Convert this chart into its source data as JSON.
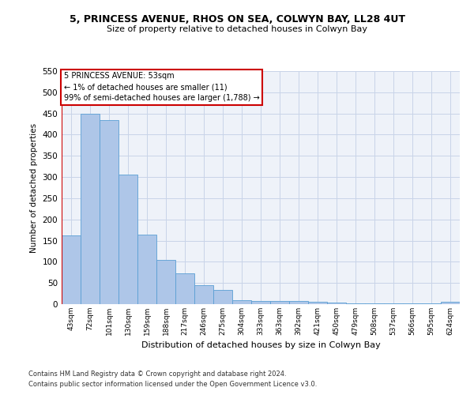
{
  "title": "5, PRINCESS AVENUE, RHOS ON SEA, COLWYN BAY, LL28 4UT",
  "subtitle": "Size of property relative to detached houses in Colwyn Bay",
  "xlabel": "Distribution of detached houses by size in Colwyn Bay",
  "ylabel": "Number of detached properties",
  "annotation_lines": [
    "5 PRINCESS AVENUE: 53sqm",
    "← 1% of detached houses are smaller (11)",
    "99% of semi-detached houses are larger (1,788) →"
  ],
  "categories": [
    "43sqm",
    "72sqm",
    "101sqm",
    "130sqm",
    "159sqm",
    "188sqm",
    "217sqm",
    "246sqm",
    "275sqm",
    "304sqm",
    "333sqm",
    "363sqm",
    "392sqm",
    "421sqm",
    "450sqm",
    "479sqm",
    "508sqm",
    "537sqm",
    "566sqm",
    "595sqm",
    "624sqm"
  ],
  "values": [
    163,
    450,
    435,
    305,
    165,
    105,
    73,
    44,
    33,
    10,
    8,
    8,
    8,
    5,
    3,
    2,
    2,
    2,
    2,
    2,
    5
  ],
  "bar_color": "#aec6e8",
  "bar_edge_color": "#5a9fd4",
  "annotation_box_color": "#ffffff",
  "annotation_box_edge_color": "#cc0000",
  "marker_line_color": "#cc0000",
  "marker_bin": 0,
  "ylim": [
    0,
    550
  ],
  "yticks": [
    0,
    50,
    100,
    150,
    200,
    250,
    300,
    350,
    400,
    450,
    500,
    550
  ],
  "grid_color": "#c8d4e8",
  "background_color": "#eef2f9",
  "footer_line1": "Contains HM Land Registry data © Crown copyright and database right 2024.",
  "footer_line2": "Contains public sector information licensed under the Open Government Licence v3.0."
}
